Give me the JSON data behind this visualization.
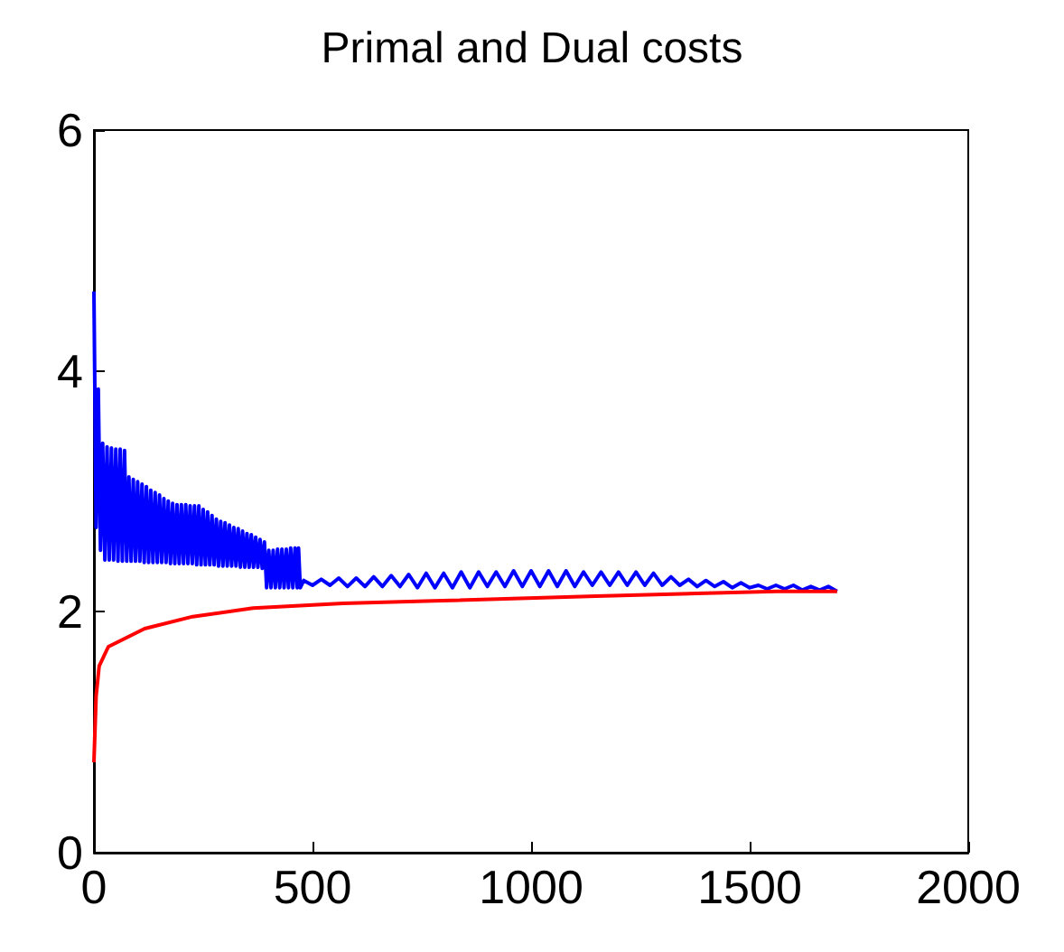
{
  "chart_data": {
    "type": "line",
    "title": "Primal and Dual costs",
    "xlim": [
      0,
      2000
    ],
    "xticks": [
      0,
      500,
      1000,
      1500,
      2000
    ],
    "ylim": [
      0,
      6
    ],
    "yticks": [
      0,
      2,
      4,
      6
    ],
    "series": [
      {
        "color": "#0000ff",
        "x": [
          0,
          5,
          10,
          15,
          20,
          25,
          30,
          35,
          40,
          45,
          50,
          55,
          60,
          65,
          70,
          75,
          80,
          85,
          90,
          95,
          100,
          105,
          110,
          115,
          120,
          125,
          130,
          135,
          140,
          145,
          150,
          155,
          160,
          165,
          170,
          175,
          180,
          185,
          190,
          195,
          200,
          205,
          210,
          215,
          220,
          225,
          230,
          235,
          240,
          245,
          250,
          255,
          260,
          265,
          270,
          275,
          280,
          285,
          290,
          295,
          300,
          305,
          310,
          315,
          320,
          325,
          330,
          335,
          340,
          345,
          350,
          355,
          360,
          365,
          370,
          375,
          380,
          385,
          390,
          395,
          400,
          405,
          410,
          415,
          420,
          425,
          430,
          435,
          440,
          445,
          450,
          455,
          460,
          465,
          468,
          472,
          480,
          500,
          520,
          540,
          560,
          580,
          600,
          620,
          640,
          660,
          680,
          700,
          720,
          740,
          760,
          780,
          800,
          820,
          840,
          860,
          880,
          900,
          920,
          940,
          960,
          980,
          1000,
          1020,
          1040,
          1060,
          1080,
          1100,
          1120,
          1140,
          1160,
          1180,
          1200,
          1220,
          1240,
          1260,
          1280,
          1300,
          1320,
          1340,
          1360,
          1380,
          1400,
          1420,
          1440,
          1460,
          1480,
          1500,
          1520,
          1540,
          1560,
          1580,
          1600,
          1620,
          1640,
          1660,
          1680,
          1700
        ],
        "values": [
          4.66,
          2.7,
          3.85,
          2.51,
          3.4,
          2.43,
          3.37,
          2.43,
          3.36,
          2.43,
          3.35,
          2.42,
          3.35,
          2.42,
          3.34,
          2.42,
          3.12,
          2.42,
          3.1,
          2.42,
          3.08,
          2.42,
          3.06,
          2.41,
          3.04,
          2.41,
          3.01,
          2.41,
          2.99,
          2.41,
          2.97,
          2.41,
          2.94,
          2.41,
          2.92,
          2.4,
          2.9,
          2.4,
          2.89,
          2.4,
          2.89,
          2.4,
          2.89,
          2.4,
          2.88,
          2.4,
          2.88,
          2.39,
          2.88,
          2.39,
          2.85,
          2.39,
          2.83,
          2.39,
          2.8,
          2.39,
          2.77,
          2.38,
          2.75,
          2.38,
          2.74,
          2.38,
          2.72,
          2.38,
          2.7,
          2.38,
          2.69,
          2.37,
          2.67,
          2.37,
          2.65,
          2.37,
          2.64,
          2.37,
          2.62,
          2.37,
          2.6,
          2.36,
          2.58,
          2.2,
          2.51,
          2.2,
          2.51,
          2.2,
          2.52,
          2.2,
          2.52,
          2.2,
          2.52,
          2.2,
          2.53,
          2.2,
          2.53,
          2.2,
          2.53,
          2.2,
          2.26,
          2.22,
          2.27,
          2.22,
          2.28,
          2.21,
          2.28,
          2.21,
          2.29,
          2.21,
          2.3,
          2.21,
          2.31,
          2.2,
          2.32,
          2.2,
          2.32,
          2.2,
          2.33,
          2.2,
          2.33,
          2.21,
          2.33,
          2.21,
          2.34,
          2.21,
          2.34,
          2.21,
          2.34,
          2.21,
          2.34,
          2.21,
          2.33,
          2.22,
          2.33,
          2.22,
          2.33,
          2.22,
          2.33,
          2.22,
          2.32,
          2.22,
          2.29,
          2.22,
          2.27,
          2.21,
          2.26,
          2.21,
          2.25,
          2.2,
          2.24,
          2.2,
          2.22,
          2.19,
          2.22,
          2.19,
          2.22,
          2.18,
          2.21,
          2.18,
          2.21,
          2.17
        ]
      },
      {
        "color": "#ff0000",
        "x": [
          0,
          5,
          12,
          33,
          116,
          226,
          364,
          570,
          777,
          1149,
          1562,
          1700
        ],
        "values": [
          0.75,
          1.3,
          1.55,
          1.71,
          1.86,
          1.96,
          2.03,
          2.07,
          2.09,
          2.13,
          2.17,
          2.17
        ]
      }
    ]
  }
}
